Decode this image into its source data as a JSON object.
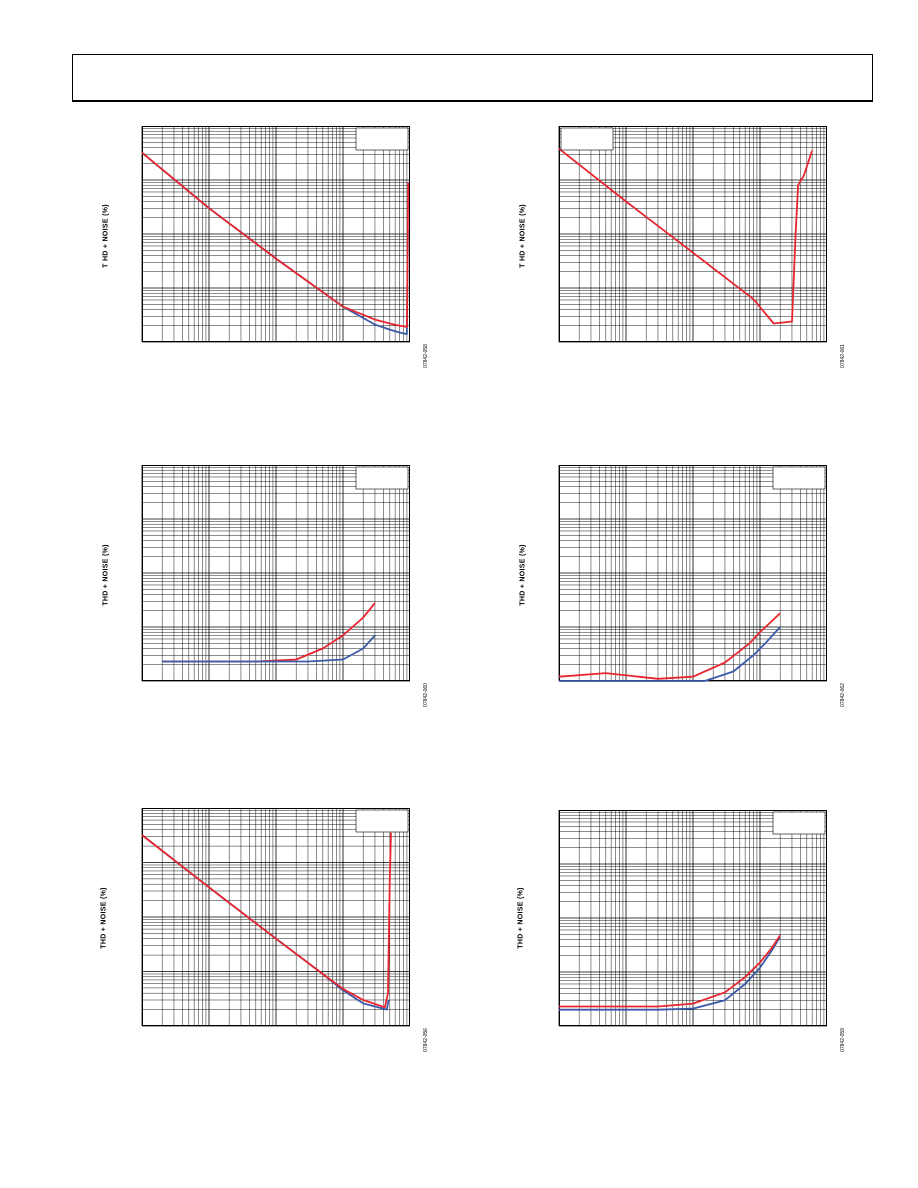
{
  "page": {
    "header_title": ""
  },
  "colors": {
    "red": "#e8262f",
    "blue": "#3b5ba8",
    "grid": "#000000"
  },
  "chart_data": [
    {
      "id": "c1",
      "type": "line",
      "xscale": "log",
      "yscale": "log",
      "xlim": [
        1,
        10000
      ],
      "ylim": [
        0.001,
        10
      ],
      "ylabel": "T HD + NOISE (%)",
      "code": "07842-058",
      "series": [
        {
          "name": "",
          "color": "blue",
          "points": [
            [
              1,
              3.2
            ],
            [
              10,
              0.3
            ],
            [
              100,
              0.035
            ],
            [
              1000,
              0.0045
            ],
            [
              3000,
              0.0021
            ],
            [
              5000,
              0.0017
            ],
            [
              7000,
              0.0015
            ],
            [
              9000,
              0.0014
            ],
            [
              9300,
              0.12
            ]
          ]
        },
        {
          "name": "",
          "color": "red",
          "points": [
            [
              1,
              3.2
            ],
            [
              10,
              0.3
            ],
            [
              100,
              0.035
            ],
            [
              1000,
              0.0045
            ],
            [
              3000,
              0.0026
            ],
            [
              5000,
              0.0022
            ],
            [
              7000,
              0.002
            ],
            [
              9000,
              0.0019
            ],
            [
              9400,
              0.9
            ]
          ]
        }
      ],
      "legend_box": true
    },
    {
      "id": "c2",
      "type": "line",
      "xscale": "log",
      "yscale": "log",
      "xlim": [
        1,
        10000
      ],
      "ylim": [
        0.001,
        10
      ],
      "ylabel": "T HD + NOISE (%)",
      "code": "07842-061",
      "series": [
        {
          "name": "",
          "color": "red",
          "points": [
            [
              1,
              3.8
            ],
            [
              10,
              0.4
            ],
            [
              100,
              0.045
            ],
            [
              800,
              0.0062
            ],
            [
              1600,
              0.0022
            ],
            [
              3000,
              0.0024
            ],
            [
              3400,
              0.1
            ],
            [
              3700,
              0.8
            ],
            [
              4500,
              1.2
            ],
            [
              6000,
              3.5
            ]
          ]
        }
      ],
      "legend_box": true
    },
    {
      "id": "c3",
      "type": "line",
      "xscale": "log",
      "yscale": "log",
      "xlim": [
        1,
        10000
      ],
      "ylim": [
        0.001,
        10
      ],
      "ylabel": "THD + NOISE (%)",
      "code": "07842-060",
      "series": [
        {
          "name": "",
          "color": "red",
          "points": [
            [
              2,
              0.0023
            ],
            [
              50,
              0.0023
            ],
            [
              200,
              0.0025
            ],
            [
              500,
              0.004
            ],
            [
              1000,
              0.007
            ],
            [
              2000,
              0.015
            ],
            [
              3000,
              0.028
            ]
          ]
        },
        {
          "name": "",
          "color": "blue",
          "points": [
            [
              2,
              0.0023
            ],
            [
              50,
              0.0023
            ],
            [
              300,
              0.0023
            ],
            [
              1000,
              0.0025
            ],
            [
              2000,
              0.004
            ],
            [
              3000,
              0.007
            ]
          ]
        }
      ],
      "legend_box": true
    },
    {
      "id": "c4",
      "type": "line",
      "xscale": "log",
      "yscale": "log",
      "xlim": [
        1,
        10000
      ],
      "ylim": [
        0.001,
        10
      ],
      "ylabel": "THD + NOISE (%)",
      "code": "07842-062",
      "series": [
        {
          "name": "",
          "color": "red",
          "points": [
            [
              1,
              0.0012
            ],
            [
              5,
              0.0014
            ],
            [
              30,
              0.0011
            ],
            [
              100,
              0.0012
            ],
            [
              300,
              0.0022
            ],
            [
              700,
              0.005
            ],
            [
              1000,
              0.008
            ],
            [
              2000,
              0.018
            ]
          ]
        },
        {
          "name": "",
          "color": "blue",
          "points": [
            [
              1,
              0.001
            ],
            [
              30,
              0.001
            ],
            [
              150,
              0.001
            ],
            [
              400,
              0.0015
            ],
            [
              800,
              0.003
            ],
            [
              1200,
              0.005
            ],
            [
              2000,
              0.01
            ]
          ]
        }
      ],
      "legend_box": true
    },
    {
      "id": "c5",
      "type": "line",
      "xscale": "log",
      "yscale": "log",
      "xlim": [
        1,
        10000
      ],
      "ylim": [
        0.001,
        10
      ],
      "ylabel": "THD + NOISE (%)",
      "code": "07842-056",
      "series": [
        {
          "name": "",
          "color": "blue",
          "points": [
            [
              1,
              3.2
            ],
            [
              10,
              0.35
            ],
            [
              100,
              0.04
            ],
            [
              500,
              0.009
            ],
            [
              1000,
              0.0045
            ],
            [
              2000,
              0.0026
            ],
            [
              4500,
              0.002
            ],
            [
              4800,
              0.003
            ]
          ]
        },
        {
          "name": "",
          "color": "red",
          "points": [
            [
              1,
              3.2
            ],
            [
              10,
              0.35
            ],
            [
              100,
              0.04
            ],
            [
              500,
              0.009
            ],
            [
              1000,
              0.0048
            ],
            [
              2000,
              0.003
            ],
            [
              4200,
              0.0022
            ],
            [
              4700,
              0.004
            ],
            [
              5000,
              0.5
            ],
            [
              5200,
              3.5
            ]
          ]
        }
      ],
      "legend_box": true
    },
    {
      "id": "c6",
      "type": "line",
      "xscale": "log",
      "yscale": "log",
      "xlim": [
        1,
        10000
      ],
      "ylim": [
        0.001,
        10
      ],
      "ylabel": "THD + NOISE (%)",
      "code": "07842-059",
      "series": [
        {
          "name": "",
          "color": "blue",
          "points": [
            [
              1,
              0.002
            ],
            [
              30,
              0.002
            ],
            [
              100,
              0.0021
            ],
            [
              300,
              0.003
            ],
            [
              600,
              0.006
            ],
            [
              1000,
              0.012
            ],
            [
              1500,
              0.025
            ],
            [
              2000,
              0.045
            ]
          ]
        },
        {
          "name": "",
          "color": "red",
          "points": [
            [
              1,
              0.0023
            ],
            [
              30,
              0.0023
            ],
            [
              100,
              0.0026
            ],
            [
              300,
              0.0042
            ],
            [
              600,
              0.008
            ],
            [
              1000,
              0.015
            ],
            [
              1500,
              0.028
            ],
            [
              2000,
              0.048
            ]
          ]
        }
      ],
      "legend_box": true
    }
  ]
}
